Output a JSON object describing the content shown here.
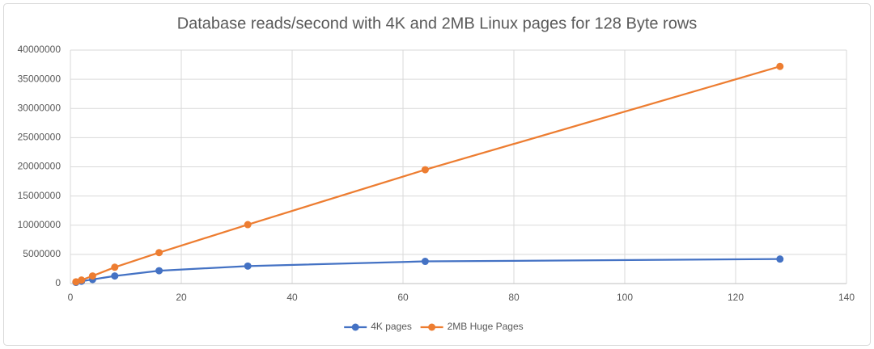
{
  "chart_data": {
    "type": "line",
    "title": "Database reads/second with 4K and 2MB Linux pages for 128 Byte rows",
    "x": [
      1,
      2,
      4,
      8,
      16,
      32,
      64,
      128
    ],
    "series": [
      {
        "name": "4K pages",
        "color": "#4472c4",
        "values": [
          200000,
          400000,
          700000,
          1300000,
          2200000,
          3000000,
          3800000,
          4200000
        ]
      },
      {
        "name": "2MB Huge Pages",
        "color": "#ed7d31",
        "values": [
          300000,
          600000,
          1300000,
          2800000,
          5300000,
          10100000,
          19500000,
          37200000
        ]
      }
    ],
    "xlim": [
      0,
      140
    ],
    "xticks": [
      0,
      20,
      40,
      60,
      80,
      100,
      120,
      140
    ],
    "ylim": [
      0,
      40000000
    ],
    "yticks": [
      0,
      5000000,
      10000000,
      15000000,
      20000000,
      25000000,
      30000000,
      35000000,
      40000000
    ],
    "grid": true,
    "legend": "bottom"
  }
}
